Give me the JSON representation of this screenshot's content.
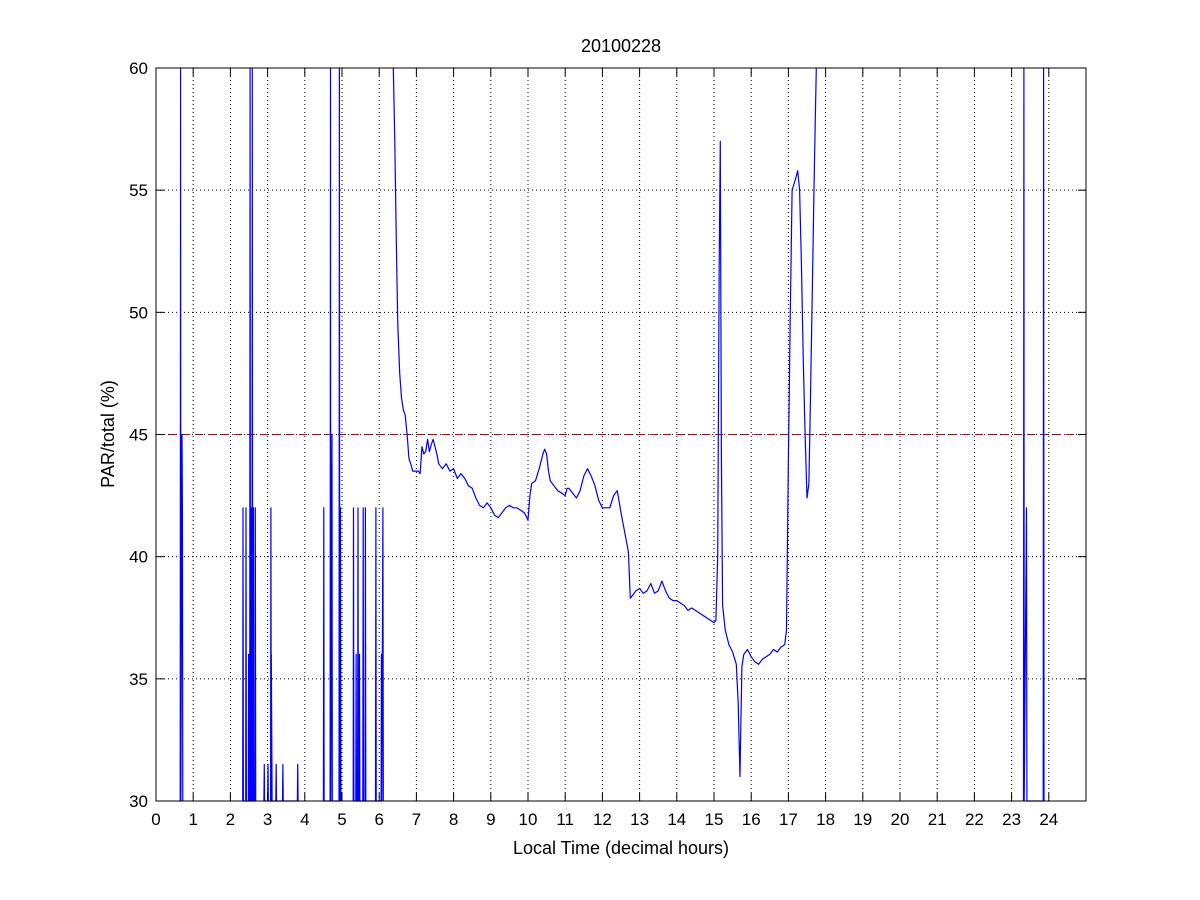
{
  "chart_data": {
    "type": "line",
    "title": "20100228",
    "xlabel": "Local Time (decimal hours)",
    "ylabel": "PAR/total (%)",
    "xlim": [
      0,
      25
    ],
    "ylim": [
      30,
      60
    ],
    "xticks": [
      0,
      1,
      2,
      3,
      4,
      5,
      6,
      7,
      8,
      9,
      10,
      11,
      12,
      13,
      14,
      15,
      16,
      17,
      18,
      19,
      20,
      21,
      22,
      23,
      24
    ],
    "yticks": [
      30,
      35,
      40,
      45,
      50,
      55,
      60
    ],
    "grid": true,
    "grid_style": "dotted",
    "reference_line": {
      "y": 45,
      "color": "#cc0000",
      "style": "dashed"
    },
    "series": [
      {
        "color": "#0000ff",
        "segments": [
          [
            [
              0.65,
              30
            ],
            [
              0.66,
              60
            ],
            [
              0.67,
              30
            ],
            [
              0.7,
              45
            ],
            [
              0.71,
              42
            ],
            [
              0.72,
              30
            ]
          ],
          [
            [
              2.33,
              30
            ],
            [
              2.34,
              42
            ],
            [
              2.35,
              30
            ],
            [
              2.41,
              30
            ],
            [
              2.42,
              42
            ],
            [
              2.43,
              30
            ],
            [
              2.48,
              30
            ],
            [
              2.49,
              36
            ],
            [
              2.5,
              30
            ],
            [
              2.52,
              30
            ],
            [
              2.53,
              60
            ],
            [
              2.54,
              30
            ],
            [
              2.55,
              42
            ],
            [
              2.56,
              30
            ],
            [
              2.58,
              30
            ],
            [
              2.59,
              60
            ],
            [
              2.6,
              30
            ],
            [
              2.62,
              42
            ],
            [
              2.63,
              30
            ],
            [
              2.66,
              30
            ],
            [
              2.67,
              42
            ],
            [
              2.68,
              30
            ]
          ],
          [
            [
              2.9,
              30
            ],
            [
              2.91,
              31.5
            ],
            [
              2.92,
              30
            ],
            [
              3.0,
              30
            ],
            [
              3.01,
              31.5
            ],
            [
              3.02,
              30
            ],
            [
              3.08,
              30
            ],
            [
              3.09,
              42
            ],
            [
              3.1,
              30
            ],
            [
              3.1,
              36
            ],
            [
              3.12,
              30
            ],
            [
              3.22,
              30
            ],
            [
              3.23,
              31.5
            ],
            [
              3.24,
              30
            ],
            [
              3.4,
              30
            ],
            [
              3.41,
              31.5
            ],
            [
              3.42,
              30
            ],
            [
              3.8,
              30
            ],
            [
              3.81,
              31.5
            ],
            [
              3.82,
              30
            ]
          ],
          [
            [
              4.5,
              30
            ],
            [
              4.51,
              42
            ],
            [
              4.52,
              30
            ],
            [
              4.68,
              30
            ],
            [
              4.69,
              60
            ],
            [
              4.7,
              30
            ],
            [
              4.73,
              45
            ],
            [
              4.74,
              30
            ],
            [
              4.92,
              30
            ],
            [
              4.93,
              60
            ],
            [
              4.94,
              30
            ],
            [
              4.96,
              42
            ],
            [
              4.97,
              30
            ]
          ],
          [
            [
              5.3,
              30
            ],
            [
              5.31,
              42
            ],
            [
              5.32,
              30
            ],
            [
              5.37,
              30
            ],
            [
              5.38,
              36
            ],
            [
              5.39,
              30
            ],
            [
              5.42,
              30
            ],
            [
              5.43,
              42
            ],
            [
              5.44,
              30
            ],
            [
              5.46,
              30
            ],
            [
              5.47,
              36
            ],
            [
              5.48,
              30
            ],
            [
              5.56,
              30
            ],
            [
              5.57,
              42
            ],
            [
              5.58,
              30
            ],
            [
              5.62,
              30
            ],
            [
              5.63,
              42
            ],
            [
              5.64,
              30
            ],
            [
              5.9,
              30
            ],
            [
              5.91,
              42
            ],
            [
              5.92,
              30
            ],
            [
              6.05,
              30
            ],
            [
              6.06,
              36
            ],
            [
              6.07,
              30
            ],
            [
              6.1,
              42
            ],
            [
              6.11,
              30
            ]
          ],
          [
            [
              6.38,
              60
            ],
            [
              6.42,
              57
            ],
            [
              6.45,
              54
            ],
            [
              6.48,
              51
            ],
            [
              6.5,
              49.5
            ],
            [
              6.55,
              47.5
            ],
            [
              6.6,
              46.5
            ],
            [
              6.65,
              46
            ],
            [
              6.7,
              45.8
            ],
            [
              6.75,
              45
            ],
            [
              6.8,
              44
            ],
            [
              6.85,
              43.8
            ],
            [
              6.9,
              43.5
            ],
            [
              7.0,
              43.5
            ],
            [
              7.05,
              43.5
            ],
            [
              7.1,
              43.4
            ],
            [
              7.15,
              44.5
            ],
            [
              7.2,
              44.2
            ],
            [
              7.25,
              44.3
            ],
            [
              7.3,
              44.8
            ],
            [
              7.35,
              44.3
            ],
            [
              7.4,
              44.6
            ],
            [
              7.45,
              44.8
            ],
            [
              7.5,
              44.5
            ],
            [
              7.55,
              44.2
            ],
            [
              7.6,
              43.8
            ],
            [
              7.7,
              43.6
            ],
            [
              7.8,
              43.8
            ],
            [
              7.9,
              43.5
            ],
            [
              8.0,
              43.6
            ],
            [
              8.1,
              43.2
            ],
            [
              8.2,
              43.4
            ],
            [
              8.3,
              43.2
            ],
            [
              8.4,
              42.9
            ],
            [
              8.5,
              42.8
            ],
            [
              8.6,
              42.4
            ],
            [
              8.7,
              42.1
            ],
            [
              8.8,
              42.0
            ],
            [
              8.9,
              42.2
            ],
            [
              9.0,
              42.0
            ],
            [
              9.1,
              41.7
            ],
            [
              9.2,
              41.6
            ],
            [
              9.3,
              41.8
            ],
            [
              9.4,
              42.0
            ],
            [
              9.5,
              42.1
            ],
            [
              9.6,
              42.0
            ],
            [
              9.7,
              42.0
            ],
            [
              9.8,
              41.9
            ],
            [
              9.9,
              41.8
            ],
            [
              10.0,
              41.5
            ],
            [
              10.05,
              42.5
            ],
            [
              10.1,
              43.0
            ],
            [
              10.2,
              43.1
            ],
            [
              10.3,
              43.6
            ],
            [
              10.4,
              44.2
            ],
            [
              10.45,
              44.4
            ],
            [
              10.5,
              44.2
            ],
            [
              10.55,
              43.5
            ],
            [
              10.6,
              43.1
            ],
            [
              10.7,
              42.9
            ],
            [
              10.8,
              42.7
            ],
            [
              10.9,
              42.6
            ],
            [
              11.0,
              42.5
            ],
            [
              11.05,
              42.8
            ],
            [
              11.1,
              42.8
            ],
            [
              11.2,
              42.6
            ],
            [
              11.3,
              42.4
            ],
            [
              11.4,
              42.7
            ],
            [
              11.5,
              43.3
            ],
            [
              11.6,
              43.6
            ],
            [
              11.7,
              43.3
            ],
            [
              11.8,
              42.9
            ],
            [
              11.9,
              42.3
            ],
            [
              12.0,
              42.0
            ],
            [
              12.1,
              42.0
            ],
            [
              12.2,
              42.0
            ],
            [
              12.3,
              42.5
            ],
            [
              12.4,
              42.7
            ],
            [
              12.5,
              41.8
            ],
            [
              12.6,
              41.0
            ],
            [
              12.7,
              40.2
            ],
            [
              12.75,
              38.3
            ],
            [
              12.8,
              38.4
            ],
            [
              12.9,
              38.6
            ],
            [
              13.0,
              38.7
            ],
            [
              13.1,
              38.5
            ],
            [
              13.2,
              38.6
            ],
            [
              13.3,
              38.9
            ],
            [
              13.4,
              38.5
            ],
            [
              13.5,
              38.6
            ],
            [
              13.6,
              39.0
            ],
            [
              13.7,
              38.6
            ],
            [
              13.8,
              38.3
            ],
            [
              13.9,
              38.2
            ],
            [
              14.0,
              38.2
            ],
            [
              14.1,
              38.1
            ],
            [
              14.2,
              38.0
            ],
            [
              14.3,
              37.8
            ],
            [
              14.4,
              37.9
            ],
            [
              14.5,
              37.8
            ],
            [
              14.6,
              37.7
            ],
            [
              14.7,
              37.6
            ],
            [
              14.8,
              37.5
            ],
            [
              14.9,
              37.4
            ],
            [
              15.0,
              37.3
            ],
            [
              15.05,
              37.4
            ],
            [
              15.1,
              40.0
            ],
            [
              15.14,
              52.0
            ],
            [
              15.17,
              57.0
            ],
            [
              15.2,
              44.0
            ],
            [
              15.23,
              38.0
            ],
            [
              15.3,
              37.0
            ],
            [
              15.4,
              36.4
            ],
            [
              15.5,
              36.1
            ],
            [
              15.6,
              35.6
            ],
            [
              15.65,
              34.0
            ],
            [
              15.7,
              31.0
            ],
            [
              15.72,
              33.0
            ],
            [
              15.75,
              35.5
            ],
            [
              15.8,
              36.0
            ],
            [
              15.9,
              36.2
            ],
            [
              16.0,
              35.9
            ],
            [
              16.1,
              35.7
            ],
            [
              16.2,
              35.6
            ],
            [
              16.3,
              35.8
            ],
            [
              16.4,
              35.9
            ],
            [
              16.5,
              36.0
            ],
            [
              16.6,
              36.2
            ],
            [
              16.7,
              36.1
            ],
            [
              16.8,
              36.3
            ],
            [
              16.9,
              36.4
            ],
            [
              16.95,
              37.0
            ],
            [
              17.0,
              44.0
            ],
            [
              17.05,
              50.0
            ],
            [
              17.1,
              55.0
            ],
            [
              17.2,
              55.5
            ],
            [
              17.25,
              55.8
            ],
            [
              17.3,
              55.0
            ],
            [
              17.35,
              52.0
            ],
            [
              17.4,
              48.0
            ],
            [
              17.45,
              45.0
            ],
            [
              17.5,
              42.4
            ],
            [
              17.55,
              43.0
            ],
            [
              17.6,
              47.0
            ],
            [
              17.7,
              56.0
            ],
            [
              17.75,
              60.0
            ]
          ],
          [
            [
              23.32,
              30
            ],
            [
              23.33,
              60
            ],
            [
              23.34,
              30
            ],
            [
              23.4,
              42
            ],
            [
              23.41,
              30
            ],
            [
              23.85,
              30
            ],
            [
              23.86,
              60
            ],
            [
              23.87,
              30
            ]
          ]
        ]
      }
    ]
  }
}
